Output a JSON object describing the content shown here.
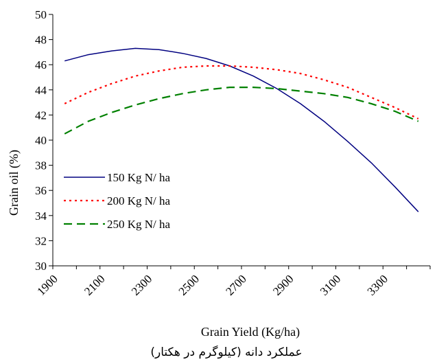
{
  "chart_data": {
    "type": "line",
    "title": "",
    "xlabel": "Grain Yield (Kg/ha)",
    "xlabel_secondary": "عملکرد دانه (کیلوگرم در هکتار)",
    "ylabel": "Grain oil (%)",
    "xlim": [
      1900,
      3500
    ],
    "ylim": [
      30,
      50
    ],
    "x_ticks": [
      1900,
      2100,
      2300,
      2500,
      2700,
      2900,
      3100,
      3300
    ],
    "y_ticks": [
      30,
      32,
      34,
      36,
      38,
      40,
      42,
      44,
      46,
      48,
      50
    ],
    "grid": false,
    "legend_position": "left",
    "series": [
      {
        "name": "150 Kg N/ ha",
        "color": "#000080",
        "dash": "solid",
        "x": [
          1950,
          2050,
          2150,
          2250,
          2350,
          2450,
          2550,
          2650,
          2750,
          2850,
          2950,
          3050,
          3150,
          3250,
          3350,
          3450
        ],
        "y": [
          46.3,
          46.8,
          47.1,
          47.3,
          47.2,
          46.9,
          46.5,
          45.9,
          45.1,
          44.1,
          42.9,
          41.5,
          39.9,
          38.2,
          36.3,
          34.3
        ]
      },
      {
        "name": "200 Kg N/ ha",
        "color": "#ff0000",
        "dash": "dotted",
        "x": [
          1950,
          2050,
          2150,
          2250,
          2350,
          2450,
          2550,
          2650,
          2750,
          2850,
          2950,
          3050,
          3150,
          3250,
          3350,
          3450
        ],
        "y": [
          42.9,
          43.8,
          44.5,
          45.1,
          45.5,
          45.8,
          45.9,
          45.9,
          45.8,
          45.6,
          45.3,
          44.8,
          44.2,
          43.4,
          42.6,
          41.7
        ]
      },
      {
        "name": "250 Kg N/ ha",
        "color": "#008000",
        "dash": "dashed",
        "x": [
          1950,
          2050,
          2150,
          2250,
          2350,
          2450,
          2550,
          2650,
          2750,
          2850,
          2950,
          3050,
          3150,
          3250,
          3350,
          3450
        ],
        "y": [
          40.5,
          41.5,
          42.2,
          42.8,
          43.3,
          43.7,
          44.0,
          44.2,
          44.2,
          44.1,
          43.9,
          43.7,
          43.4,
          42.9,
          42.3,
          41.5
        ]
      }
    ]
  }
}
